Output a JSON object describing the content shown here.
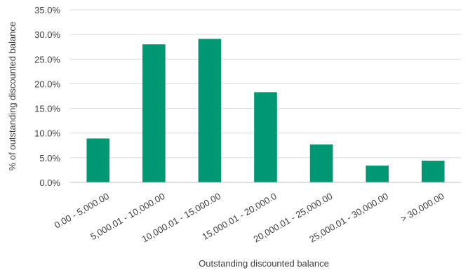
{
  "chart_data": {
    "type": "bar",
    "title": "",
    "xlabel": "Outstanding discounted balance",
    "ylabel": "% of outstanding discounted balance",
    "categories": [
      "0.00 - 5,000.00",
      "5,000.01 - 10,000.00",
      "10,000.01 - 15,000.00",
      "15,000.01 - 20,000.0",
      "20,000.01 - 25,000.00",
      "25,000.01 - 30,000.00",
      "> 30,000.00"
    ],
    "values": [
      8.9,
      28.0,
      29.1,
      18.3,
      7.7,
      3.4,
      4.4
    ],
    "ylim": [
      0,
      35
    ],
    "yticks": [
      "0.0%",
      "5.0%",
      "10.0%",
      "15.0%",
      "20.0%",
      "25.0%",
      "30.0%",
      "35.0%"
    ],
    "grid": true,
    "legend": "none",
    "bar_color": "#009872",
    "grid_color": "#d9d9d9"
  }
}
